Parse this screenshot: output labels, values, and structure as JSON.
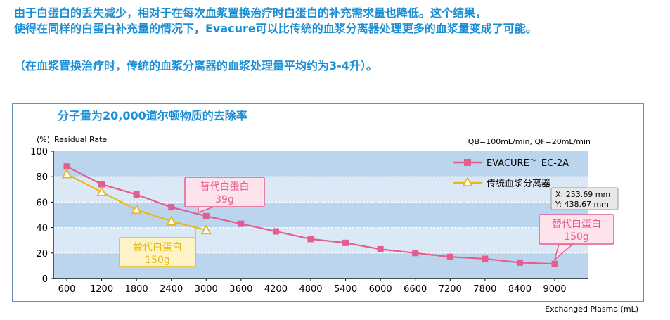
{
  "intro": {
    "line1": "由于白蛋白的丢失减少，相对于在每次血浆置换治疗时白蛋白的补充需求量也降低。这个结果，",
    "line2": "使得在同样的白蛋白补充量的情况下，Evacure可以比传统的血浆分离器处理更多的血浆量变成了可能。",
    "line3": "（在血浆置换治疗时，传统的血浆分离器的血浆处理量平均约为3-4升）。"
  },
  "colors": {
    "text_blue": "#1a8fd6",
    "frame": "#6a8fc8",
    "band_light": "#dbe9f7",
    "band_dark": "#bcd5ef",
    "series_pink": "#e35d8d",
    "series_yellow": "#e8b916",
    "callout_pink_fill": "#fde3ec",
    "callout_yellow_fill": "#fdf3c6"
  },
  "chart_data": {
    "type": "line",
    "title": "分子量为20,000道尔顿物质的去除率",
    "ylabel": "Residual Rate",
    "y_unit": "(%)",
    "xlabel": "Exchanged Plasma (mL)",
    "conditions": "QB=100mL/min, QF=20mL/min",
    "ylim": [
      0,
      100
    ],
    "yticks": [
      0,
      20,
      40,
      60,
      80,
      100
    ],
    "xticks": [
      600,
      1200,
      1800,
      2400,
      3000,
      3600,
      4200,
      4800,
      5400,
      6000,
      6600,
      7200,
      7800,
      8400,
      9000
    ],
    "grid": true,
    "legend_position": "top-right",
    "series": [
      {
        "name": "EVACURE™ EC-2A",
        "color": "#e35d8d",
        "marker": "square",
        "x": [
          600,
          1200,
          1800,
          2400,
          3000,
          3600,
          4200,
          4800,
          5400,
          6000,
          6600,
          7200,
          7800,
          8400,
          9000
        ],
        "y": [
          88,
          74,
          66,
          56,
          49,
          43,
          37,
          31,
          28,
          23,
          20,
          17,
          15.5,
          12.5,
          11.5
        ]
      },
      {
        "name": "传统血浆分离器",
        "color": "#e8b916",
        "marker": "triangle",
        "x": [
          600,
          1200,
          1800,
          2400,
          3000
        ],
        "y": [
          82,
          68,
          54,
          45,
          38
        ]
      }
    ],
    "annotations": [
      {
        "line1": "替代白蛋白",
        "line2": "39g",
        "style": "pink",
        "x": 3000,
        "y": 49
      },
      {
        "line1": "替代白蛋白",
        "line2": "150g",
        "style": "yellow",
        "x": 3000,
        "y": 38
      },
      {
        "line1": "替代白蛋白",
        "line2": "150g",
        "style": "pink",
        "x": 9000,
        "y": 11.5
      }
    ],
    "tooltip": {
      "line1": "X: 253.69 mm",
      "line2": "Y: 438.67 mm"
    }
  }
}
